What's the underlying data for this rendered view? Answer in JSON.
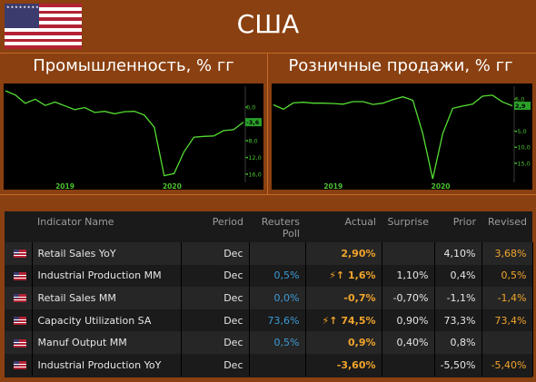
{
  "header": {
    "country": "США",
    "flag_icon": "us-flag-icon"
  },
  "panels": [
    {
      "title": "Промышленность, % гг",
      "chart_data": {
        "type": "line",
        "x_labels": [
          "2019",
          "2020"
        ],
        "y_ticks": [
          "0,0",
          "-4,0",
          "-8,0",
          "-12,0",
          "-16,0"
        ],
        "current_label": "-3,6",
        "ylim": [
          -18,
          5
        ],
        "values": [
          3.9,
          2.9,
          0.9,
          1.9,
          0.4,
          1.2,
          0.3,
          -0.6,
          -0.1,
          -1.3,
          -1.0,
          -1.6,
          -1.1,
          -1.0,
          -1.9,
          -4.8,
          -16.4,
          -15.9,
          -10.7,
          -7.2,
          -7.0,
          -6.9,
          -5.6,
          -5.4,
          -3.6
        ],
        "line_color": "#55dd33"
      }
    },
    {
      "title": "Розничные продажи, % гг",
      "chart_data": {
        "type": "line",
        "x_labels": [
          "2019",
          "2020"
        ],
        "y_ticks": [
          "5,0",
          "-5,0",
          "-10,0",
          "-15,0"
        ],
        "current_label": "2,9",
        "ylim": [
          -21,
          9
        ],
        "values": [
          3.2,
          1.8,
          3.8,
          4.0,
          3.7,
          3.7,
          3.6,
          3.4,
          4.2,
          4.2,
          3.3,
          3.7,
          4.8,
          5.7,
          4.6,
          -5.8,
          -19.9,
          -5.8,
          2.1,
          2.8,
          3.4,
          5.9,
          6.2,
          4.1,
          2.9
        ],
        "line_color": "#55dd33"
      }
    }
  ],
  "table": {
    "headers": [
      "",
      "Indicator Name",
      "Period",
      "Reuters Poll",
      "Actual",
      "Surprise",
      "Prior",
      "Revised"
    ],
    "rows": [
      {
        "name": "Retail Sales YoY",
        "period": "Dec",
        "poll": "",
        "flag": "",
        "actual": "2,90%",
        "surprise": "",
        "prior": "4,10%",
        "revised": "3,68%"
      },
      {
        "name": "Industrial Production MM",
        "period": "Dec",
        "poll": "0,5%",
        "flag": "⚡↑",
        "actual": "1,6%",
        "surprise": "1,10%",
        "prior": "0,4%",
        "revised": "0,5%"
      },
      {
        "name": "Retail Sales MM",
        "period": "Dec",
        "poll": "0,0%",
        "flag": "",
        "actual": "-0,7%",
        "surprise": "-0,70%",
        "prior": "-1,1%",
        "revised": "-1,4%"
      },
      {
        "name": "Capacity Utilization SA",
        "period": "Dec",
        "poll": "73,6%",
        "flag": "⚡↑",
        "actual": "74,5%",
        "surprise": "0,90%",
        "prior": "73,3%",
        "revised": "73,4%"
      },
      {
        "name": "Manuf Output MM",
        "period": "Dec",
        "poll": "0,5%",
        "flag": "",
        "actual": "0,9%",
        "surprise": "0,40%",
        "prior": "0,8%",
        "revised": ""
      },
      {
        "name": "Industrial Production YoY",
        "period": "Dec",
        "poll": "",
        "flag": "",
        "actual": "-3,60%",
        "surprise": "",
        "prior": "-5,50%",
        "revised": "-5,40%"
      }
    ]
  }
}
